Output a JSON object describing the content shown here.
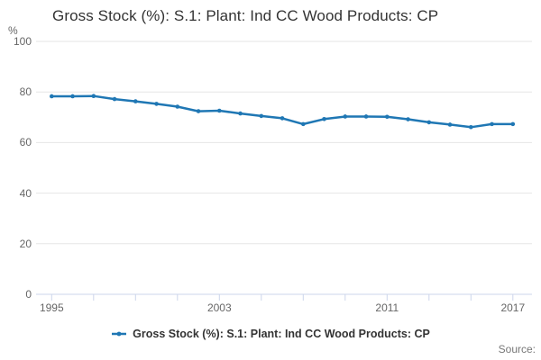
{
  "title": "Gross Stock (%): S.1: Plant: Ind CC Wood Products: CP",
  "y_unit": "%",
  "legend": {
    "label": "Gross Stock (%): S.1: Plant: Ind CC Wood Products: CP"
  },
  "source_label": "Source:",
  "colors": {
    "line": "#1f77b4",
    "grid": "#e6e6e6",
    "axis": "#ccd6eb",
    "tick_label": "#666666",
    "title": "#333333",
    "source": "#777777"
  },
  "chart_data": {
    "type": "line",
    "title": "Gross Stock (%): S.1: Plant: Ind CC Wood Products: CP",
    "xlabel": "",
    "ylabel": "%",
    "x": [
      1995,
      1996,
      1997,
      1998,
      1999,
      2000,
      2001,
      2002,
      2003,
      2004,
      2005,
      2006,
      2007,
      2008,
      2009,
      2010,
      2011,
      2012,
      2013,
      2014,
      2015,
      2016,
      2017
    ],
    "series": [
      {
        "name": "Gross Stock (%): S.1: Plant: Ind CC Wood Products: CP",
        "values": [
          78.3,
          78.3,
          78.4,
          77.2,
          76.3,
          75.3,
          74.2,
          72.4,
          72.6,
          71.5,
          70.5,
          69.6,
          67.3,
          69.3,
          70.3,
          70.3,
          70.2,
          69.2,
          68.0,
          67.1,
          66.1,
          67.3,
          67.3
        ]
      }
    ],
    "ylim": [
      0,
      100
    ],
    "y_ticks": [
      0,
      20,
      40,
      60,
      80,
      100
    ],
    "x_tick_years": [
      1995,
      1997,
      1999,
      2001,
      2003,
      2005,
      2007,
      2009,
      2011,
      2013,
      2015,
      2017
    ],
    "x_label_years": [
      1995,
      2003,
      2011,
      2017
    ],
    "grid": true,
    "legend_position": "bottom"
  }
}
